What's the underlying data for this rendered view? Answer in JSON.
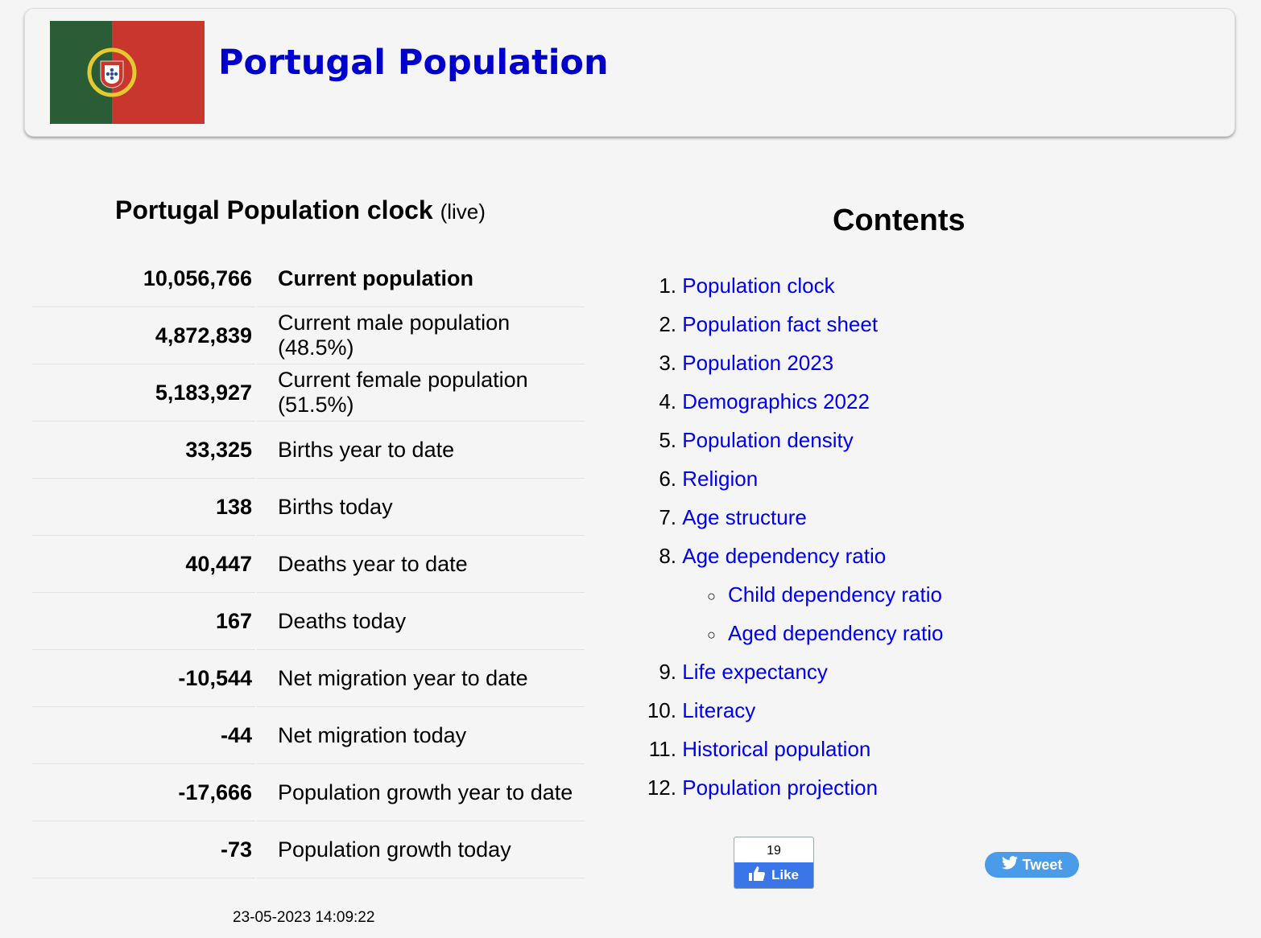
{
  "header": {
    "title": "Portugal Population",
    "flag": "portugal-flag"
  },
  "clock": {
    "heading": "Portugal Population clock",
    "live": "(live)",
    "rows": [
      {
        "value": "10,056,766",
        "label": "Current population"
      },
      {
        "value": "4,872,839",
        "label": "Current male population (48.5%)"
      },
      {
        "value": "5,183,927",
        "label": "Current female population (51.5%)"
      },
      {
        "value": "33,325",
        "label": "Births year to date"
      },
      {
        "value": "138",
        "label": "Births today"
      },
      {
        "value": "40,447",
        "label": "Deaths year to date"
      },
      {
        "value": "167",
        "label": "Deaths today"
      },
      {
        "value": "-10,544",
        "label": "Net migration year to date"
      },
      {
        "value": "-44",
        "label": "Net migration today"
      },
      {
        "value": "-17,666",
        "label": "Population growth year to date"
      },
      {
        "value": "-73",
        "label": "Population growth today"
      }
    ],
    "timestamp": "23-05-2023 14:09:22"
  },
  "contents": {
    "heading": "Contents",
    "items": [
      {
        "num": "1.",
        "label": "Population clock"
      },
      {
        "num": "2.",
        "label": "Population fact sheet"
      },
      {
        "num": "3.",
        "label": "Population 2023"
      },
      {
        "num": "4.",
        "label": "Demographics 2022"
      },
      {
        "num": "5.",
        "label": "Population density"
      },
      {
        "num": "6.",
        "label": "Religion"
      },
      {
        "num": "7.",
        "label": "Age structure"
      },
      {
        "num": "8.",
        "label": "Age dependency ratio"
      },
      {
        "num": "",
        "label": "Child dependency ratio",
        "sub": true
      },
      {
        "num": "",
        "label": "Aged dependency ratio",
        "sub": true
      },
      {
        "num": "9.",
        "label": "Life expectancy"
      },
      {
        "num": "10.",
        "label": "Literacy"
      },
      {
        "num": "11.",
        "label": "Historical population"
      },
      {
        "num": "12.",
        "label": "Population projection"
      }
    ]
  },
  "social": {
    "like_count": "19",
    "like_label": "Like",
    "tweet_label": "Tweet"
  },
  "colors": {
    "title": "#0000cc",
    "link": "#0000ee",
    "like": "#3b76e9",
    "tweet": "#4a9be8"
  }
}
